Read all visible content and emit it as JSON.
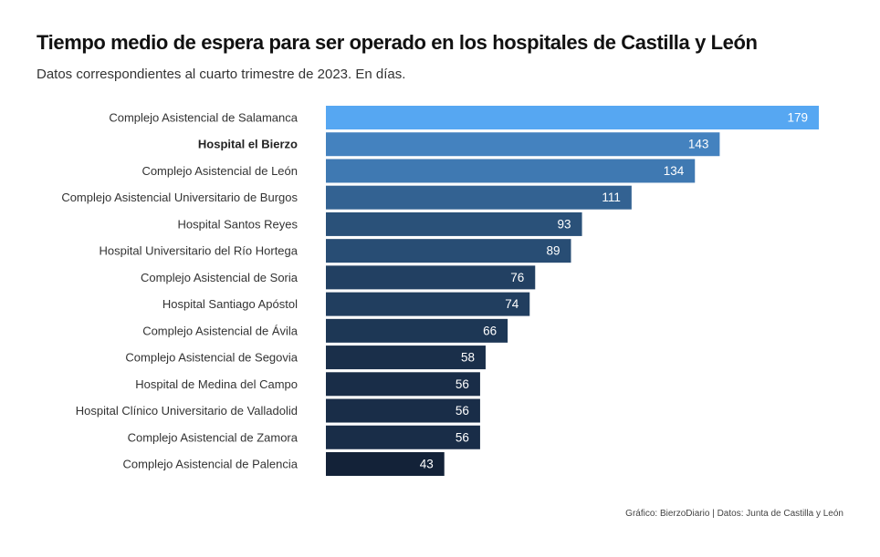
{
  "chart_data": {
    "type": "bar",
    "orientation": "horizontal",
    "title": "Tiempo medio de espera para ser operado en los hospitales de Castilla y León",
    "subtitle": "Datos correspondientes al cuarto trimestre de 2023. En días.",
    "caption": "Gráfico: BierzoDiario | Datos: Junta de Castilla y León",
    "categories": [
      "Complejo Asistencial de Salamanca",
      "Hospital el Bierzo",
      "Complejo Asistencial de León",
      "Complejo Asistencial Universitario de Burgos",
      "Hospital Santos Reyes",
      "Hospital Universitario del Río Hortega",
      "Complejo Asistencial de Soria",
      "Hospital Santiago Apóstol",
      "Complejo Asistencial de Ávila",
      "Complejo Asistencial de Segovia",
      "Hospital de Medina del Campo",
      "Hospital Clínico Universitario de Valladolid",
      "Complejo Asistencial de Zamora",
      "Complejo Asistencial de Palencia"
    ],
    "values": [
      179,
      143,
      134,
      111,
      93,
      89,
      76,
      74,
      66,
      58,
      56,
      56,
      56,
      43
    ],
    "value_labels": [
      "179",
      "143",
      "134",
      "111",
      "93",
      "89",
      "76",
      "74",
      "66",
      "58",
      "56",
      "56",
      "56",
      "43"
    ],
    "highlight": "Hospital el Bierzo",
    "xlim": [
      0,
      179
    ],
    "grid": false,
    "legend": "none",
    "color_scale": {
      "low": "#132238",
      "high": "#56a7f2"
    }
  }
}
